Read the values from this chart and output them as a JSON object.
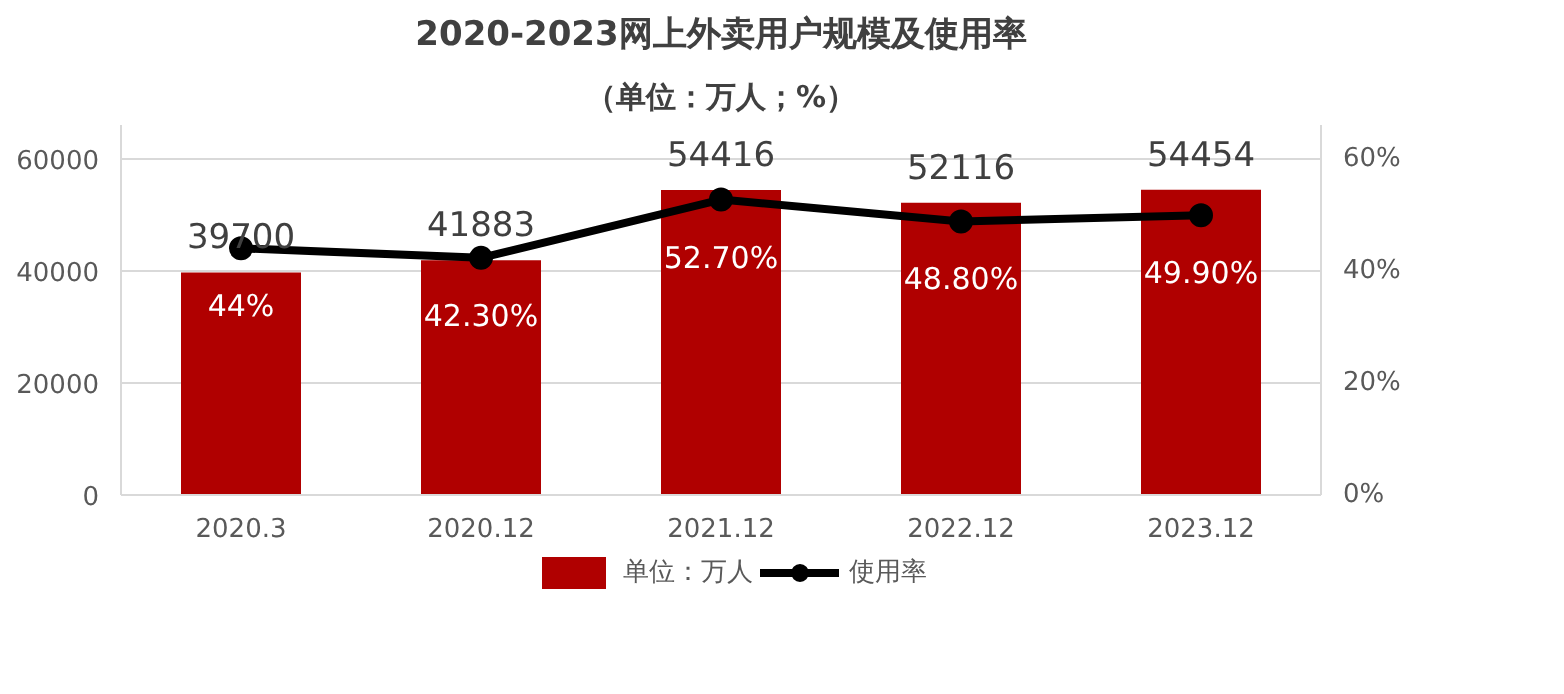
{
  "chart_data": {
    "type": "bar",
    "title": "2020-2023网上外卖用户规模及使用率",
    "subtitle": "（单位：万人；%）",
    "categories": [
      "2020.3",
      "2020.12",
      "2021.12",
      "2022.12",
      "2023.12"
    ],
    "series": [
      {
        "name": "单位：万人",
        "color": "#b00000",
        "values": [
          39700,
          41883,
          54416,
          52116,
          54454
        ],
        "value_labels": [
          "39700",
          "41883",
          "54416",
          "52116",
          "54454"
        ]
      },
      {
        "name": "使用率",
        "type": "line",
        "axis": "y2",
        "color": "#000000",
        "values": [
          44,
          42.3,
          52.7,
          48.8,
          49.9
        ],
        "value_labels": [
          "44%",
          "42.30%",
          "52.70%",
          "48.80%",
          "49.90%"
        ]
      }
    ],
    "ylim": [
      0,
      66000
    ],
    "yticks": [
      0,
      20000,
      40000,
      60000
    ],
    "y2lim": [
      0,
      66
    ],
    "y2ticks": [
      {
        "value": 0,
        "label": "0%"
      },
      {
        "value": 20,
        "label": "20%"
      },
      {
        "value": 40,
        "label": "40%"
      },
      {
        "value": 60,
        "label": "60%"
      }
    ],
    "grid": "y",
    "legend": "bottom",
    "marker": "circle",
    "line_style": "solid"
  }
}
